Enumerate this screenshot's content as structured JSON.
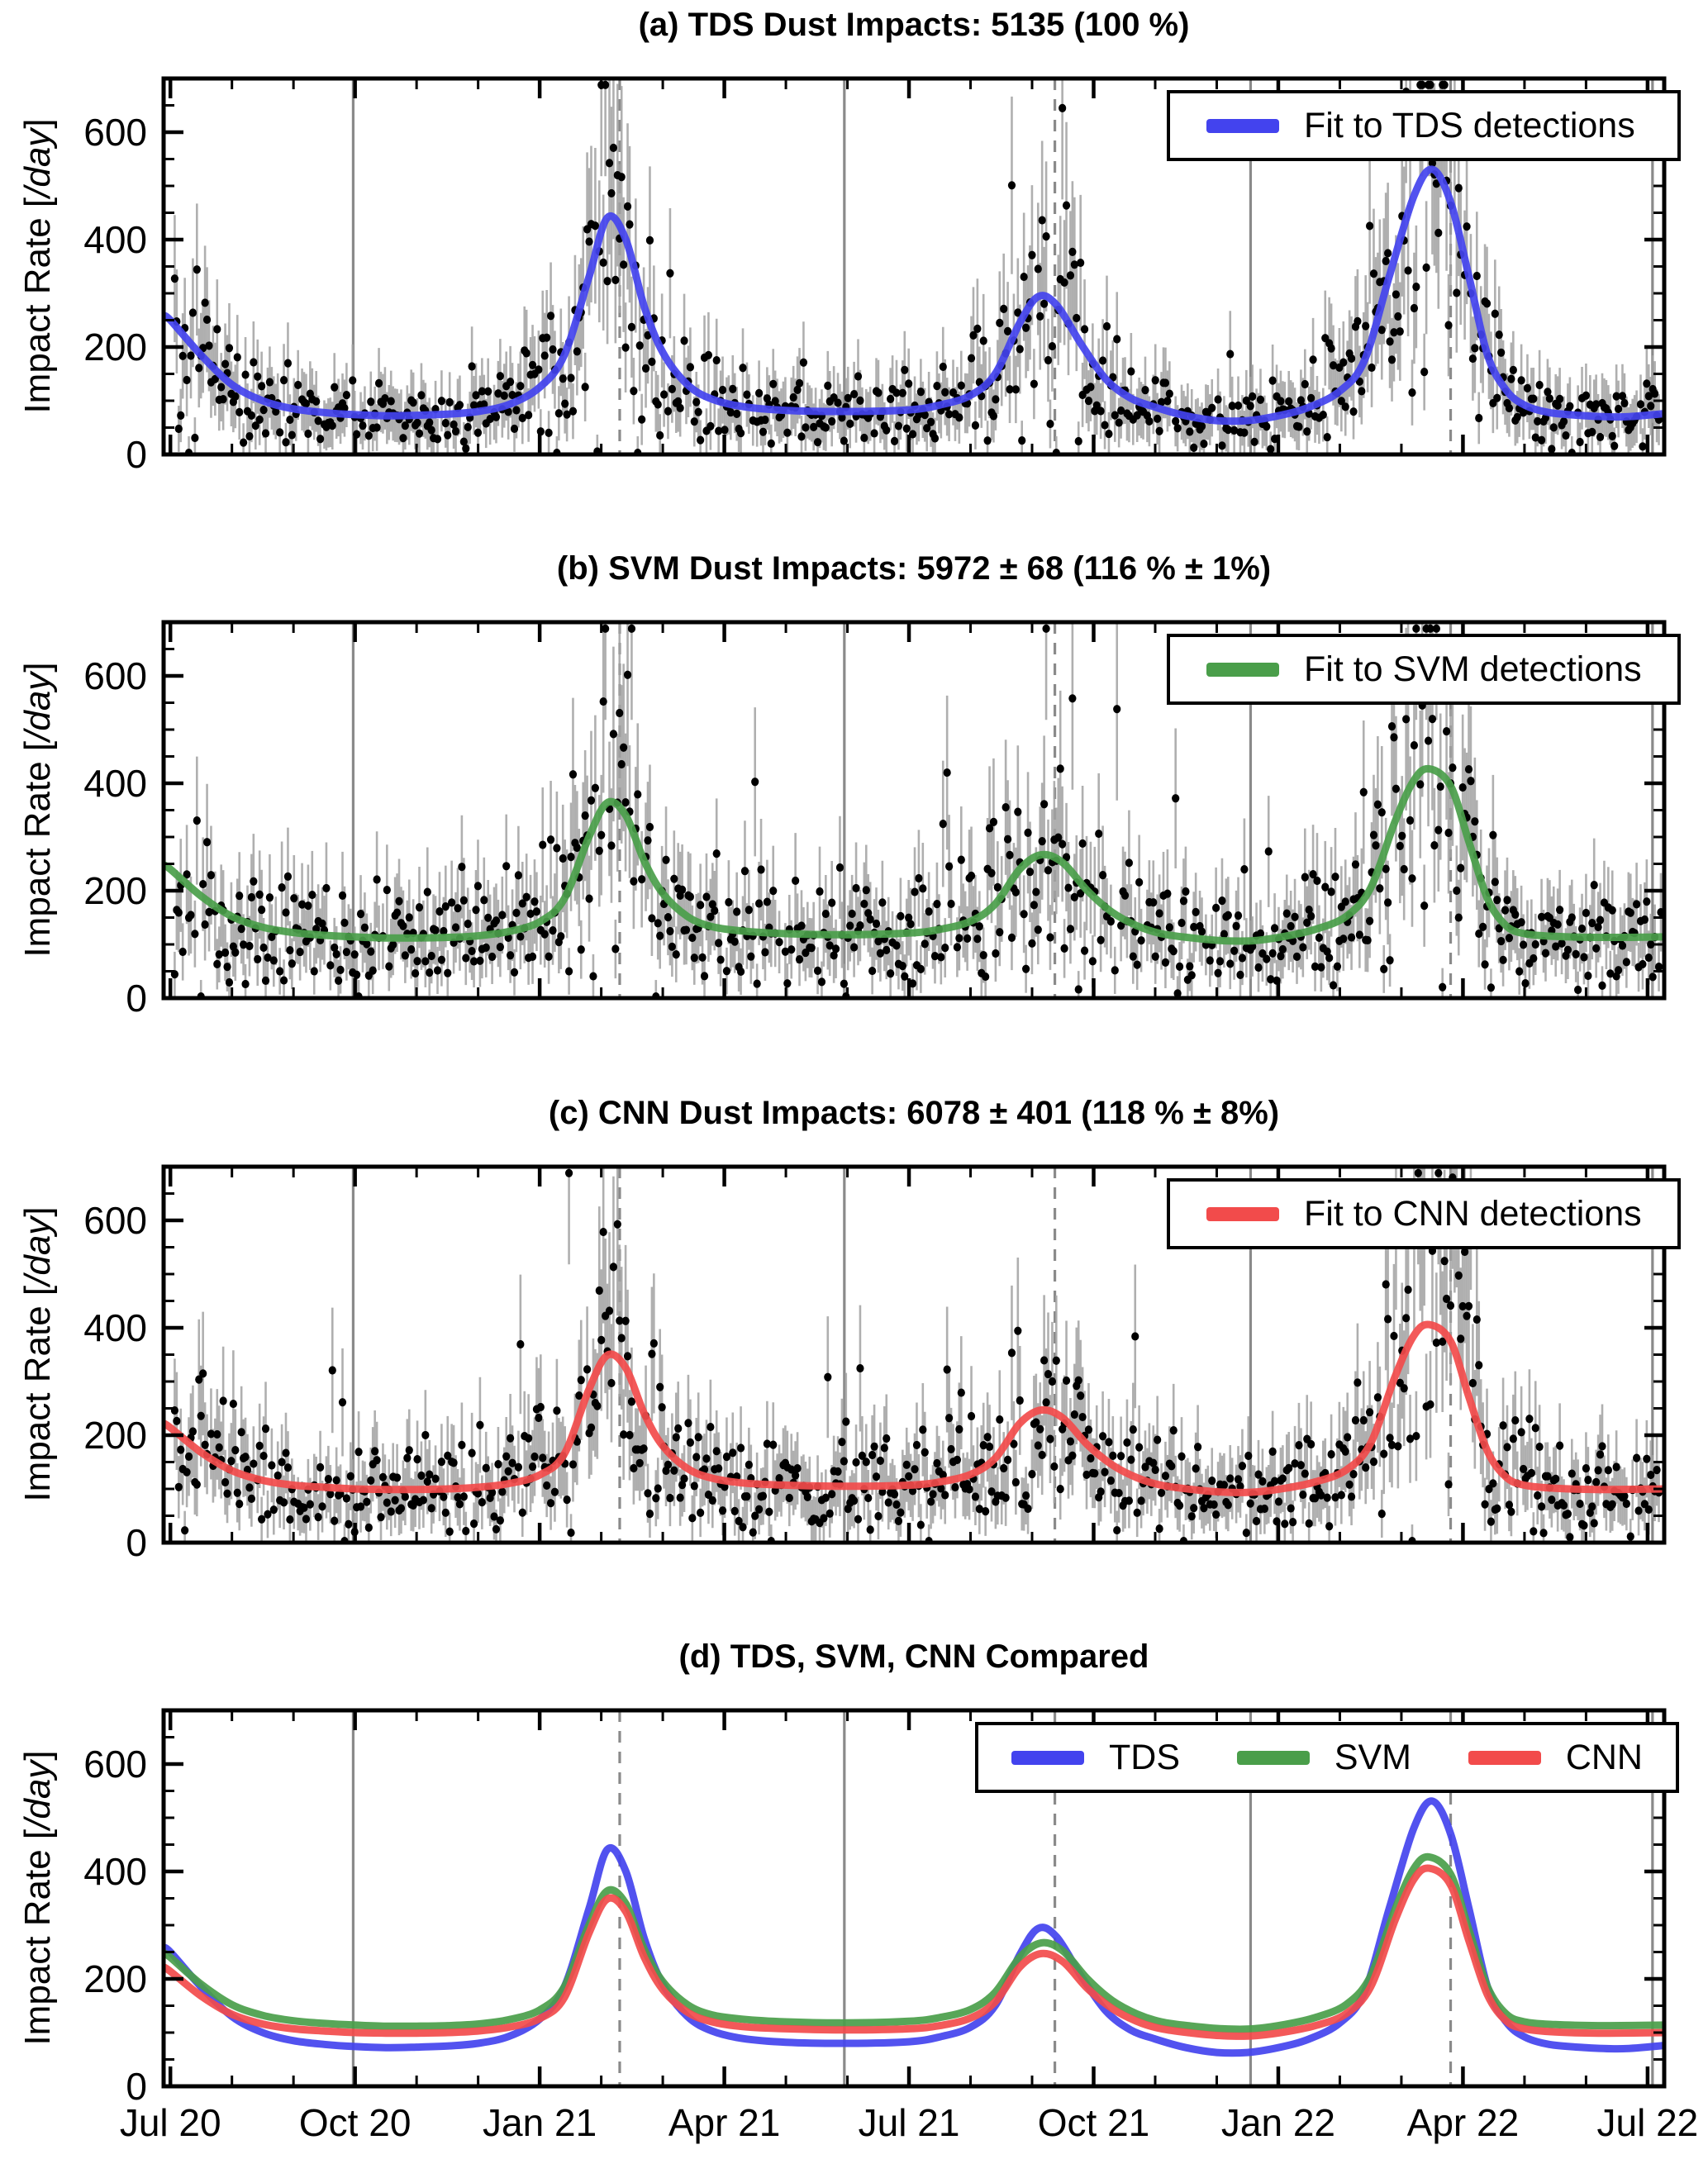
{
  "figure": {
    "ylabel": {
      "pre": "Impact Rate [",
      "italic": "/day",
      "post": "]"
    },
    "x_tick_labels": [
      "Jul 20",
      "Oct 20",
      "Jan 21",
      "Apr 21",
      "Jul 21",
      "Oct 21",
      "Jan 22",
      "Apr 22",
      "Jul 22"
    ],
    "x_major_months": [
      0,
      3,
      6,
      9,
      12,
      15,
      18,
      21,
      24
    ],
    "x_minor_step_months": 1,
    "x_range_months_after_2020_07": [
      -0.11,
      24.27
    ],
    "y_range": [
      0,
      700
    ],
    "y_tick_values": [
      0,
      200,
      400,
      600
    ],
    "y_tick_labels": [
      "0",
      "200",
      "400",
      "600"
    ],
    "y_minor_step": 50,
    "vlines": {
      "solid_months": [
        2.97,
        10.95,
        17.55,
        24.08
      ],
      "dashed_months": [
        7.3,
        14.37,
        20.8
      ]
    },
    "grid": "vertical-event-lines-only"
  },
  "colors": {
    "tds": "#4343ee",
    "svm": "#4a9e4a",
    "cnn": "#f24b4b",
    "scatter_dot": "#000000",
    "error_bar": "#a2a2a2",
    "gridline": "#8a8a8a",
    "frame": "#000000"
  },
  "fits": {
    "TDS": {
      "color_key": "tds",
      "points": [
        [
          -0.11,
          258
        ],
        [
          0,
          250
        ],
        [
          0.5,
          185
        ],
        [
          1,
          130
        ],
        [
          1.5,
          100
        ],
        [
          2,
          85
        ],
        [
          2.5,
          78
        ],
        [
          3,
          74
        ],
        [
          3.5,
          72
        ],
        [
          4,
          73
        ],
        [
          4.5,
          75
        ],
        [
          5,
          80
        ],
        [
          5.5,
          93
        ],
        [
          6,
          125
        ],
        [
          6.4,
          185
        ],
        [
          6.8,
          330
        ],
        [
          7.1,
          441
        ],
        [
          7.4,
          400
        ],
        [
          7.7,
          275
        ],
        [
          8,
          190
        ],
        [
          8.4,
          130
        ],
        [
          8.8,
          103
        ],
        [
          9.3,
          89
        ],
        [
          10,
          82
        ],
        [
          11,
          80
        ],
        [
          12,
          83
        ],
        [
          12.5,
          92
        ],
        [
          13,
          110
        ],
        [
          13.4,
          150
        ],
        [
          13.8,
          245
        ],
        [
          14.1,
          294
        ],
        [
          14.4,
          278
        ],
        [
          14.8,
          205
        ],
        [
          15.2,
          140
        ],
        [
          15.6,
          105
        ],
        [
          16,
          88
        ],
        [
          16.5,
          72
        ],
        [
          17,
          63
        ],
        [
          17.5,
          63
        ],
        [
          18,
          72
        ],
        [
          18.5,
          88
        ],
        [
          19,
          118
        ],
        [
          19.4,
          175
        ],
        [
          19.8,
          330
        ],
        [
          20.2,
          480
        ],
        [
          20.5,
          531
        ],
        [
          20.8,
          470
        ],
        [
          21.1,
          330
        ],
        [
          21.4,
          185
        ],
        [
          21.7,
          120
        ],
        [
          22,
          92
        ],
        [
          22.4,
          78
        ],
        [
          23,
          72
        ],
        [
          23.6,
          70
        ],
        [
          24.27,
          76
        ]
      ]
    },
    "SVM": {
      "color_key": "svm",
      "points": [
        [
          -0.11,
          248
        ],
        [
          0,
          240
        ],
        [
          0.5,
          190
        ],
        [
          1,
          152
        ],
        [
          1.5,
          132
        ],
        [
          2,
          122
        ],
        [
          2.5,
          117
        ],
        [
          3,
          114
        ],
        [
          3.5,
          112
        ],
        [
          4,
          112
        ],
        [
          4.5,
          113
        ],
        [
          5,
          116
        ],
        [
          5.5,
          124
        ],
        [
          6,
          142
        ],
        [
          6.4,
          185
        ],
        [
          6.8,
          300
        ],
        [
          7.1,
          364
        ],
        [
          7.4,
          340
        ],
        [
          7.7,
          255
        ],
        [
          8,
          195
        ],
        [
          8.4,
          152
        ],
        [
          8.8,
          133
        ],
        [
          9.3,
          125
        ],
        [
          10,
          120
        ],
        [
          11,
          118
        ],
        [
          12,
          121
        ],
        [
          12.5,
          128
        ],
        [
          13,
          143
        ],
        [
          13.4,
          175
        ],
        [
          13.8,
          240
        ],
        [
          14.15,
          267
        ],
        [
          14.5,
          252
        ],
        [
          14.9,
          200
        ],
        [
          15.3,
          160
        ],
        [
          15.7,
          135
        ],
        [
          16.1,
          120
        ],
        [
          16.6,
          112
        ],
        [
          17.1,
          107
        ],
        [
          17.6,
          107
        ],
        [
          18.1,
          115
        ],
        [
          18.6,
          128
        ],
        [
          19.1,
          152
        ],
        [
          19.5,
          205
        ],
        [
          19.9,
          330
        ],
        [
          20.2,
          405
        ],
        [
          20.45,
          427
        ],
        [
          20.8,
          395
        ],
        [
          21.1,
          290
        ],
        [
          21.4,
          185
        ],
        [
          21.7,
          135
        ],
        [
          22,
          120
        ],
        [
          22.5,
          115
        ],
        [
          23.2,
          113
        ],
        [
          24.27,
          114
        ]
      ]
    },
    "CNN": {
      "color_key": "cnn",
      "points": [
        [
          -0.11,
          222
        ],
        [
          0,
          214
        ],
        [
          0.5,
          168
        ],
        [
          1,
          134
        ],
        [
          1.5,
          116
        ],
        [
          2,
          107
        ],
        [
          2.5,
          103
        ],
        [
          3,
          100
        ],
        [
          3.5,
          99
        ],
        [
          4,
          99
        ],
        [
          4.5,
          100
        ],
        [
          5,
          103
        ],
        [
          5.5,
          110
        ],
        [
          6,
          126
        ],
        [
          6.4,
          165
        ],
        [
          6.8,
          285
        ],
        [
          7.1,
          349
        ],
        [
          7.4,
          325
        ],
        [
          7.7,
          240
        ],
        [
          8,
          180
        ],
        [
          8.4,
          138
        ],
        [
          8.8,
          120
        ],
        [
          9.3,
          111
        ],
        [
          10,
          107
        ],
        [
          11,
          105
        ],
        [
          12,
          107
        ],
        [
          12.5,
          113
        ],
        [
          13,
          127
        ],
        [
          13.4,
          157
        ],
        [
          13.8,
          222
        ],
        [
          14.15,
          247
        ],
        [
          14.5,
          232
        ],
        [
          14.9,
          182
        ],
        [
          15.3,
          145
        ],
        [
          15.7,
          121
        ],
        [
          16.1,
          107
        ],
        [
          16.6,
          99
        ],
        [
          17.1,
          94
        ],
        [
          17.6,
          94
        ],
        [
          18.1,
          101
        ],
        [
          18.6,
          113
        ],
        [
          19.1,
          135
        ],
        [
          19.5,
          185
        ],
        [
          19.9,
          310
        ],
        [
          20.2,
          385
        ],
        [
          20.45,
          406
        ],
        [
          20.8,
          375
        ],
        [
          21.1,
          270
        ],
        [
          21.4,
          170
        ],
        [
          21.7,
          122
        ],
        [
          22,
          107
        ],
        [
          22.5,
          101
        ],
        [
          23.2,
          99
        ],
        [
          24.27,
          100
        ]
      ]
    }
  },
  "scatter_style": {
    "dot_rx": 4.6,
    "dot_ry": 5.1,
    "bar_width": 2.6,
    "bar_opacity": 0.85
  },
  "chart_data": [
    {
      "id": "a",
      "type": "scatter+line",
      "title": "(a) TDS Dust Impacts: 5135 (100 %)",
      "legend": [
        {
          "label": "Fit to TDS detections",
          "fit": "TDS"
        }
      ],
      "series": [
        "TDS"
      ],
      "scatter": {
        "follows": "TDS",
        "seed": 101,
        "skip_prob": 0.08,
        "noise_frac": 0.4,
        "outlier_prob": 0.022,
        "err_base": 30,
        "err_frac": 0.27,
        "err_cap": 170
      },
      "show_x_labels": false
    },
    {
      "id": "b",
      "type": "scatter+line",
      "title": "(b) SVM Dust Impacts: 5972 ± 68 (116 % ± 1%)",
      "legend": [
        {
          "label": "Fit to SVM detections",
          "fit": "SVM"
        }
      ],
      "series": [
        "SVM"
      ],
      "scatter": {
        "follows": "SVM",
        "seed": 202,
        "skip_prob": 0.06,
        "noise_frac": 0.42,
        "outlier_prob": 0.025,
        "err_base": 30,
        "err_frac": 0.27,
        "err_cap": 170
      },
      "show_x_labels": false
    },
    {
      "id": "c",
      "type": "scatter+line",
      "title": "(c) CNN Dust Impacts: 6078 ± 401 (118 % ± 8%)",
      "legend": [
        {
          "label": "Fit to CNN detections",
          "fit": "CNN"
        }
      ],
      "series": [
        "CNN"
      ],
      "scatter": {
        "follows": "CNN",
        "seed": 303,
        "skip_prob": 0.06,
        "noise_frac": 0.42,
        "outlier_prob": 0.025,
        "err_base": 30,
        "err_frac": 0.27,
        "err_cap": 170
      },
      "show_x_labels": false
    },
    {
      "id": "d",
      "type": "line",
      "title": "(d) TDS, SVM, CNN Compared",
      "legend": [
        {
          "label": "TDS",
          "fit": "TDS"
        },
        {
          "label": "SVM",
          "fit": "SVM"
        },
        {
          "label": "CNN",
          "fit": "CNN"
        }
      ],
      "series": [
        "TDS",
        "SVM",
        "CNN"
      ],
      "scatter": null,
      "show_x_labels": true
    }
  ]
}
